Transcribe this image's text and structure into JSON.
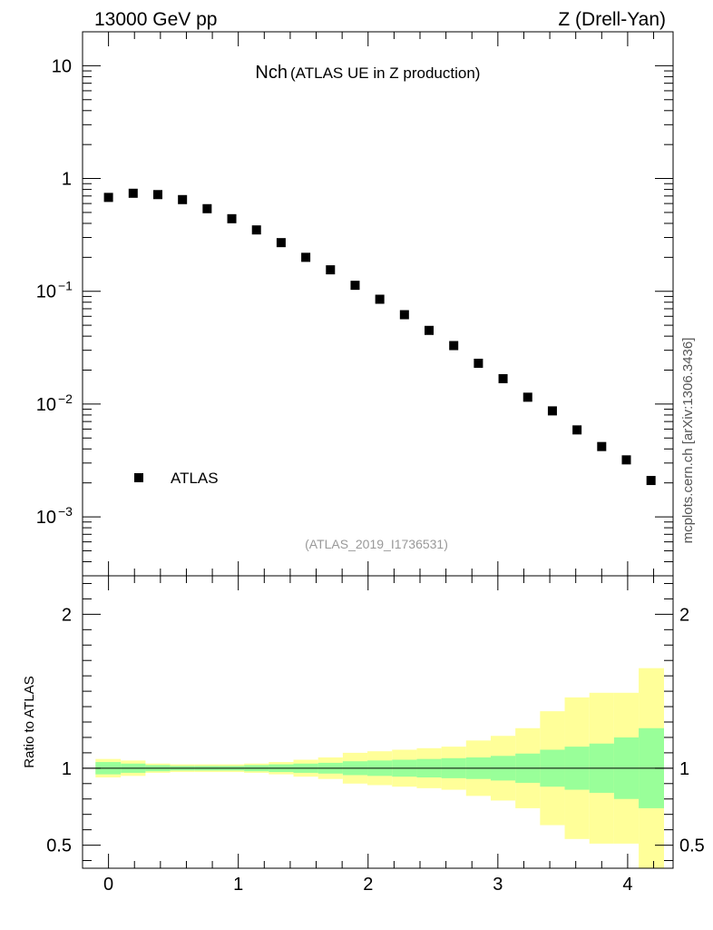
{
  "header": {
    "left": "13000 GeV pp",
    "right": "Z (Drell-Yan)"
  },
  "side_label": "mcplots.cern.ch [arXiv:1306.3436]",
  "chart_data": [
    {
      "type": "scatter",
      "title_main": "Nch",
      "title_sub": "(ATLAS UE in Z production)",
      "watermark": "(ATLAS_2019_I1736531)",
      "yscale": "log",
      "xlim": [
        -0.2,
        4.35
      ],
      "ylim": [
        0.0003,
        20
      ],
      "yticks": [
        {
          "value": 10,
          "label": "10"
        },
        {
          "value": 1,
          "label": "1"
        },
        {
          "value": 0.1,
          "label": "10",
          "exp": "−1"
        },
        {
          "value": 0.01,
          "label": "10",
          "exp": "−2"
        },
        {
          "value": 0.001,
          "label": "10",
          "exp": "−3"
        }
      ],
      "legend": {
        "placement": "bottom-left",
        "entries": [
          "ATLAS"
        ]
      },
      "series": [
        {
          "name": "ATLAS",
          "color": "#000000",
          "x": [
            0.0,
            0.19,
            0.38,
            0.57,
            0.76,
            0.95,
            1.14,
            1.33,
            1.52,
            1.71,
            1.9,
            2.09,
            2.28,
            2.47,
            2.66,
            2.85,
            3.04,
            3.23,
            3.42,
            3.61,
            3.8,
            3.99,
            4.18
          ],
          "y": [
            0.68,
            0.74,
            0.72,
            0.65,
            0.54,
            0.44,
            0.35,
            0.27,
            0.2,
            0.155,
            0.113,
            0.085,
            0.062,
            0.045,
            0.033,
            0.023,
            0.0168,
            0.0115,
            0.0087,
            0.0059,
            0.0042,
            0.0032,
            0.0021
          ]
        }
      ]
    },
    {
      "type": "area",
      "ylabel": "Ratio to ATLAS",
      "xlim": [
        -0.2,
        4.35
      ],
      "ylim": [
        0.35,
        2.25
      ],
      "xticks": [
        {
          "value": 0,
          "label": "0"
        },
        {
          "value": 1,
          "label": "1"
        },
        {
          "value": 2,
          "label": "2"
        },
        {
          "value": 3,
          "label": "3"
        },
        {
          "value": 4,
          "label": "4"
        }
      ],
      "yticks": [
        {
          "value": 0.5,
          "label": "0.5"
        },
        {
          "value": 1,
          "label": "1"
        },
        {
          "value": 2,
          "label": "2"
        }
      ],
      "reference_line": 1,
      "bins": [
        -0.1,
        0.095,
        0.285,
        0.475,
        0.665,
        0.855,
        1.045,
        1.235,
        1.425,
        1.615,
        1.805,
        1.995,
        2.185,
        2.375,
        2.565,
        2.755,
        2.945,
        3.135,
        3.325,
        3.515,
        3.705,
        3.895,
        4.085,
        4.28
      ],
      "inner_band": {
        "color": "#99ff99",
        "low": [
          0.96,
          0.97,
          0.98,
          0.985,
          0.985,
          0.985,
          0.98,
          0.975,
          0.97,
          0.965,
          0.955,
          0.95,
          0.945,
          0.94,
          0.935,
          0.93,
          0.92,
          0.905,
          0.88,
          0.86,
          0.84,
          0.8,
          0.74
        ],
        "high": [
          1.04,
          1.03,
          1.02,
          1.015,
          1.015,
          1.015,
          1.02,
          1.025,
          1.03,
          1.035,
          1.045,
          1.05,
          1.055,
          1.06,
          1.065,
          1.07,
          1.08,
          1.095,
          1.12,
          1.14,
          1.16,
          1.2,
          1.26
        ]
      },
      "outer_band": {
        "color": "#ffff99",
        "low": [
          0.94,
          0.95,
          0.97,
          0.975,
          0.975,
          0.975,
          0.97,
          0.96,
          0.945,
          0.93,
          0.9,
          0.89,
          0.88,
          0.87,
          0.86,
          0.82,
          0.79,
          0.74,
          0.63,
          0.54,
          0.51,
          0.51,
          0.35
        ],
        "high": [
          1.06,
          1.05,
          1.03,
          1.025,
          1.025,
          1.025,
          1.03,
          1.04,
          1.055,
          1.07,
          1.1,
          1.11,
          1.12,
          1.13,
          1.14,
          1.18,
          1.21,
          1.26,
          1.37,
          1.46,
          1.49,
          1.49,
          1.65
        ]
      }
    }
  ]
}
